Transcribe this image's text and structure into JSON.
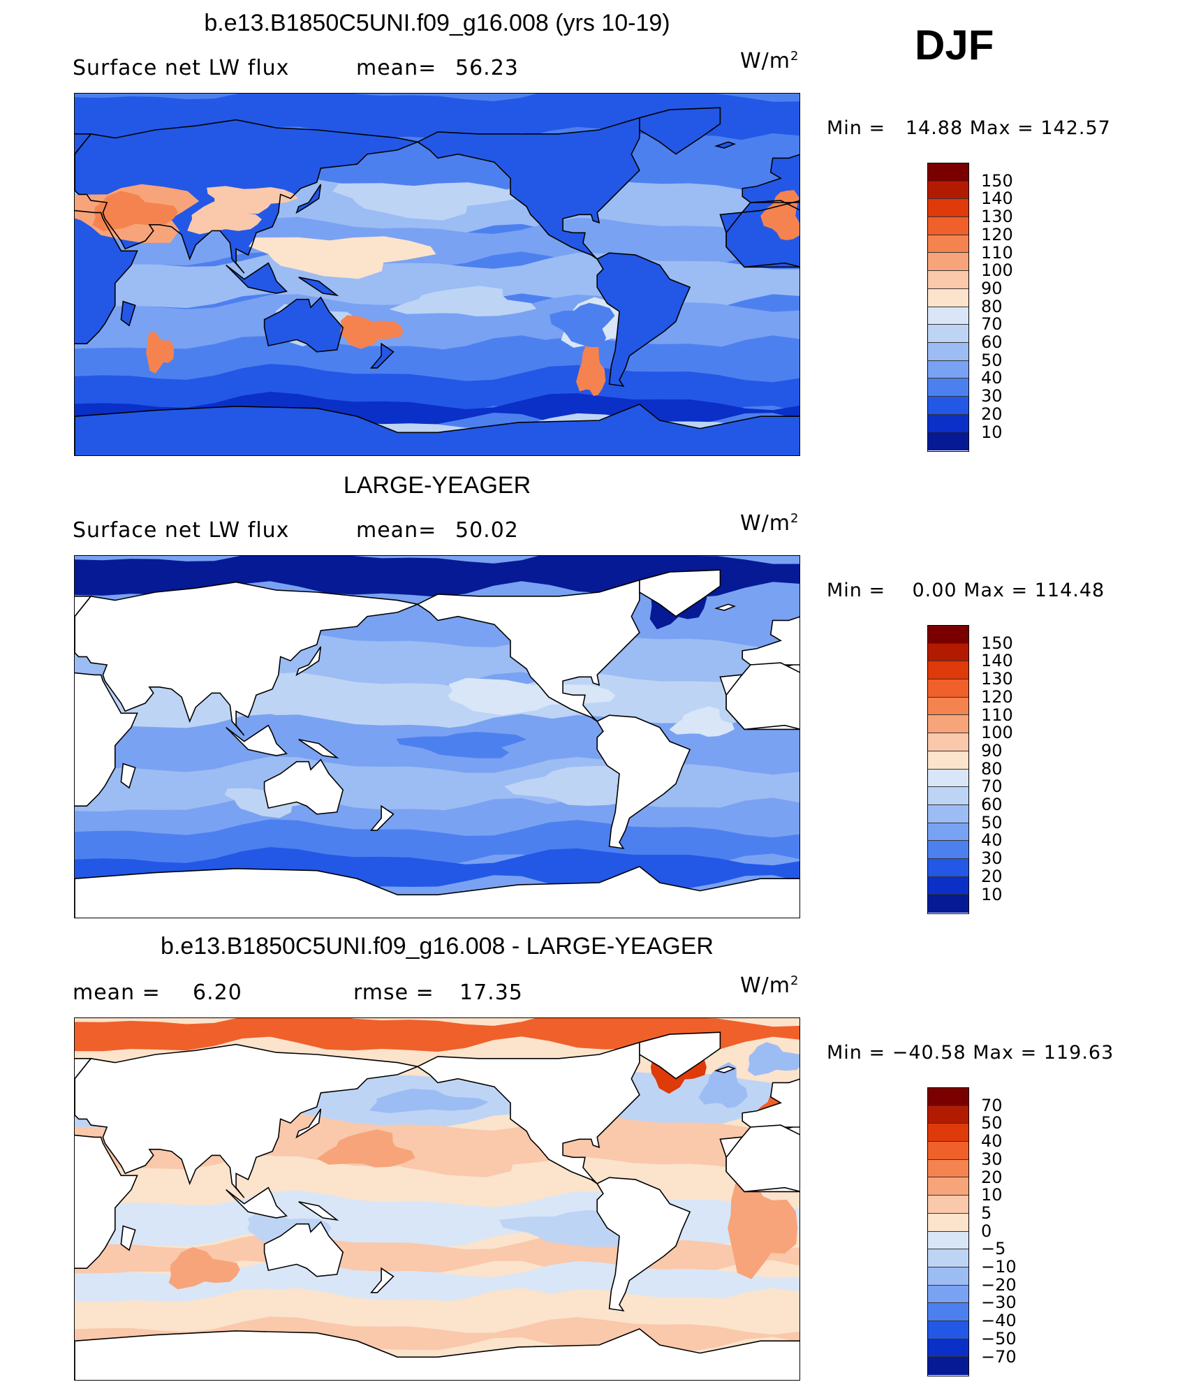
{
  "season": "DJF",
  "panels": [
    {
      "title": "b.e13.B1850C5UNI.f09_g16.008 (yrs 10-19)",
      "left_label": "Surface net LW flux",
      "stat_label": "mean=",
      "stat_value": "56.23",
      "second_label": "",
      "second_value": "",
      "unit": "W/m",
      "unit_exp": "2",
      "minmax": "Min =   14.88 Max = 142.57",
      "levels": [
        "150",
        "140",
        "130",
        "120",
        "110",
        "100",
        "90",
        "80",
        "70",
        "60",
        "50",
        "40",
        "30",
        "20",
        "10"
      ],
      "colors": [
        "#7a0000",
        "#b31b00",
        "#de3a0a",
        "#f0602a",
        "#f58350",
        "#f7a47a",
        "#fac8aa",
        "#fbe3cc",
        "#d8e6f7",
        "#bed4f5",
        "#9cbcf4",
        "#7aa2f2",
        "#4d80ef",
        "#2358e6",
        "#0a30c8",
        "#061a96"
      ],
      "land_white": false
    },
    {
      "title": "LARGE-YEAGER",
      "left_label": "Surface net LW flux",
      "stat_label": "mean=",
      "stat_value": "50.02",
      "second_label": "",
      "second_value": "",
      "unit": "W/m",
      "unit_exp": "2",
      "minmax": "Min =    0.00 Max = 114.48",
      "levels": [
        "150",
        "140",
        "130",
        "120",
        "110",
        "100",
        "90",
        "80",
        "70",
        "60",
        "50",
        "40",
        "30",
        "20",
        "10"
      ],
      "colors": [
        "#7a0000",
        "#b31b00",
        "#de3a0a",
        "#f0602a",
        "#f58350",
        "#f7a47a",
        "#fac8aa",
        "#fbe3cc",
        "#d8e6f7",
        "#bed4f5",
        "#9cbcf4",
        "#7aa2f2",
        "#4d80ef",
        "#2358e6",
        "#0a30c8",
        "#061a96"
      ],
      "land_white": true
    },
    {
      "title": "b.e13.B1850C5UNI.f09_g16.008 - LARGE-YEAGER",
      "left_label": "mean =",
      "stat_label": "",
      "stat_value": "6.20",
      "second_label": "rmse =",
      "second_value": "17.35",
      "unit": "W/m",
      "unit_exp": "2",
      "minmax": "Min = −40.58 Max = 119.63",
      "levels": [
        "70",
        "50",
        "40",
        "30",
        "20",
        "10",
        "5",
        "0",
        "−5",
        "−10",
        "−20",
        "−30",
        "−40",
        "−50",
        "−70"
      ],
      "colors": [
        "#7a0000",
        "#b31b00",
        "#de3a0a",
        "#f0602a",
        "#f58350",
        "#f7a47a",
        "#fac8aa",
        "#fbe3cc",
        "#d8e6f7",
        "#bed4f5",
        "#9cbcf4",
        "#7aa2f2",
        "#4d80ef",
        "#2358e6",
        "#0a30c8",
        "#061a96"
      ],
      "land_white": true
    }
  ]
}
